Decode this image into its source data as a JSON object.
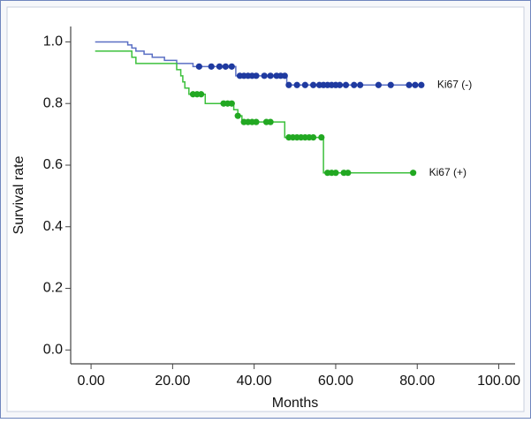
{
  "chart_data": {
    "type": "step",
    "x_label": "Months",
    "y_label": "Survival rate",
    "xlim": [
      -5,
      104
    ],
    "ylim": [
      -0.045,
      1.05
    ],
    "xticks": [
      {
        "value": 0,
        "label": "0.00"
      },
      {
        "value": 20,
        "label": "20.00"
      },
      {
        "value": 40,
        "label": "40.00"
      },
      {
        "value": 60,
        "label": "60.00"
      },
      {
        "value": 80,
        "label": "80.00"
      },
      {
        "value": 100,
        "label": "100.00"
      }
    ],
    "yticks": [
      {
        "value": 0,
        "label": "0.0"
      },
      0.2,
      0.4,
      0.6,
      0.8,
      {
        "value": 1,
        "label": "1.0"
      }
    ],
    "series": [
      {
        "name": "Ki67 (-)",
        "color": "#1f3aa0",
        "line_color": "#5a6fc4",
        "x": [
          1,
          9,
          10,
          11,
          13,
          15,
          18,
          21,
          25,
          35.5,
          48,
          81
        ],
        "values": [
          1.0,
          0.99,
          0.98,
          0.97,
          0.96,
          0.95,
          0.94,
          0.93,
          0.92,
          0.89,
          0.86,
          0.86
        ],
        "censor_x": [
          26.5,
          29.5,
          31.5,
          33,
          34.5,
          36.5,
          37.5,
          38.5,
          39.5,
          40.5,
          42.5,
          44,
          45.5,
          46.5,
          47.5,
          48.5,
          50.5,
          52.5,
          54.5,
          56,
          57,
          58,
          59,
          60,
          61,
          62.5,
          64.5,
          66,
          70.5,
          73.5,
          78,
          79.5,
          81
        ],
        "censor_values": [
          0.92,
          0.92,
          0.92,
          0.92,
          0.92,
          0.89,
          0.89,
          0.89,
          0.89,
          0.89,
          0.89,
          0.89,
          0.89,
          0.89,
          0.89,
          0.86,
          0.86,
          0.86,
          0.86,
          0.86,
          0.86,
          0.86,
          0.86,
          0.86,
          0.86,
          0.86,
          0.86,
          0.86,
          0.86,
          0.86,
          0.86,
          0.86,
          0.86
        ]
      },
      {
        "name": "Ki67 (+)",
        "color": "#22a822",
        "line_color": "#3cc03c",
        "x": [
          1,
          10,
          11,
          21,
          22,
          22.5,
          23,
          24,
          28,
          35,
          36,
          37,
          47.5,
          57,
          79
        ],
        "values": [
          0.97,
          0.95,
          0.93,
          0.91,
          0.89,
          0.87,
          0.85,
          0.83,
          0.8,
          0.78,
          0.76,
          0.74,
          0.69,
          0.575,
          0.575
        ],
        "censor_x": [
          25,
          26,
          27,
          32.5,
          33.5,
          34.5,
          36,
          37.5,
          38.5,
          39.5,
          40.5,
          43,
          44,
          48.5,
          49.5,
          50.5,
          51.5,
          52.5,
          53.5,
          54.5,
          56.5,
          58,
          59,
          60,
          62,
          63,
          79
        ],
        "censor_values": [
          0.83,
          0.83,
          0.83,
          0.8,
          0.8,
          0.8,
          0.76,
          0.74,
          0.74,
          0.74,
          0.74,
          0.74,
          0.74,
          0.69,
          0.69,
          0.69,
          0.69,
          0.69,
          0.69,
          0.69,
          0.69,
          0.575,
          0.575,
          0.575,
          0.575,
          0.575,
          0.575
        ]
      }
    ]
  }
}
